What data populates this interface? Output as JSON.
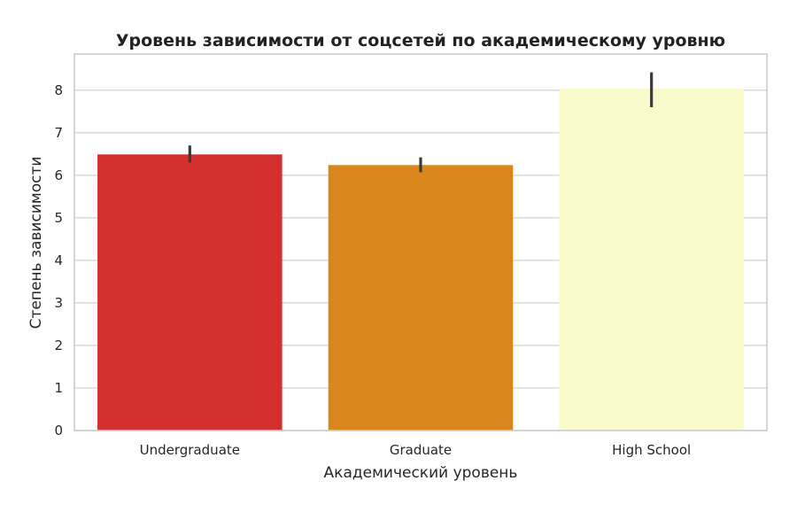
{
  "chart_data": {
    "type": "bar",
    "title": "Уровень зависимости от соцсетей по академическому уровню",
    "xlabel": "Академический уровень",
    "ylabel": "Степень зависимости",
    "categories": [
      "Undergraduate",
      "Graduate",
      "High School"
    ],
    "values": [
      6.49,
      6.24,
      8.04
    ],
    "error_low": [
      6.3,
      6.07,
      7.6
    ],
    "error_high": [
      6.7,
      6.42,
      8.42
    ],
    "colors": [
      "#d32f2f",
      "#d9861d",
      "#f9fbcc"
    ],
    "ylim": [
      0,
      8.85
    ],
    "yticks": [
      0,
      1,
      2,
      3,
      4,
      5,
      6,
      7,
      8
    ],
    "grid": true,
    "legend": "none"
  }
}
